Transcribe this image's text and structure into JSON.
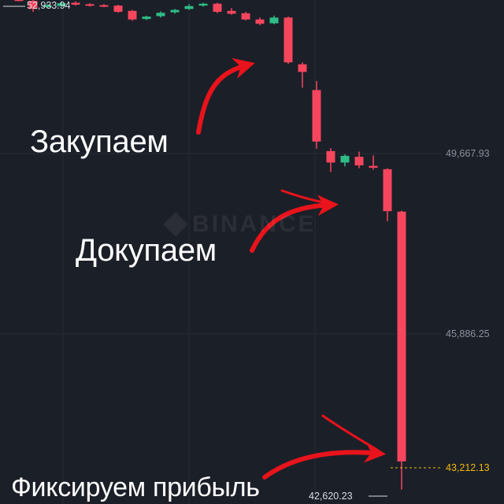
{
  "chart_data": {
    "type": "candlestick",
    "exchange_watermark": "BINANCE",
    "y_axis_labels": [
      "49,667.93",
      "45,886.25"
    ],
    "y_axis_values": [
      49667.93,
      45886.25
    ],
    "current_price": {
      "label": "43,212.13",
      "value": 43212.13
    },
    "high_marker": {
      "label": "52,933.94",
      "value": 52933.94
    },
    "low_marker": {
      "label": "42,620.23",
      "value": 42620.23
    },
    "candles": [
      {
        "o": 52900,
        "h": 52934,
        "c": 52880,
        "l": 52860
      },
      {
        "o": 52870,
        "h": 52900,
        "c": 52700,
        "l": 52640
      },
      {
        "o": 52740,
        "h": 52800,
        "c": 52780,
        "l": 52720
      },
      {
        "o": 52760,
        "h": 52860,
        "c": 52820,
        "l": 52750
      },
      {
        "o": 52830,
        "h": 52860,
        "c": 52790,
        "l": 52770
      },
      {
        "o": 52800,
        "h": 52820,
        "c": 52770,
        "l": 52750
      },
      {
        "o": 52780,
        "h": 52800,
        "c": 52760,
        "l": 52740
      },
      {
        "o": 52770,
        "h": 52790,
        "c": 52640,
        "l": 52620
      },
      {
        "o": 52660,
        "h": 52680,
        "c": 52480,
        "l": 52450
      },
      {
        "o": 52490,
        "h": 52560,
        "c": 52540,
        "l": 52470
      },
      {
        "o": 52550,
        "h": 52650,
        "c": 52620,
        "l": 52520
      },
      {
        "o": 52630,
        "h": 52700,
        "c": 52680,
        "l": 52600
      },
      {
        "o": 52700,
        "h": 52800,
        "c": 52760,
        "l": 52680
      },
      {
        "o": 52770,
        "h": 52830,
        "c": 52810,
        "l": 52750
      },
      {
        "o": 52810,
        "h": 52830,
        "c": 52640,
        "l": 52610
      },
      {
        "o": 52660,
        "h": 52720,
        "c": 52600,
        "l": 52580
      },
      {
        "o": 52610,
        "h": 52640,
        "c": 52480,
        "l": 52460
      },
      {
        "o": 52480,
        "h": 52520,
        "c": 52390,
        "l": 52360
      },
      {
        "o": 52400,
        "h": 52560,
        "c": 52520,
        "l": 52380
      },
      {
        "o": 52520,
        "h": 52540,
        "c": 51580,
        "l": 51550
      },
      {
        "o": 51540,
        "h": 51580,
        "c": 51380,
        "l": 51050
      },
      {
        "o": 51000,
        "h": 51190,
        "c": 49920,
        "l": 49770
      },
      {
        "o": 49720,
        "h": 49780,
        "c": 49480,
        "l": 49280
      },
      {
        "o": 49480,
        "h": 49650,
        "c": 49620,
        "l": 49400
      },
      {
        "o": 49600,
        "h": 49710,
        "c": 49420,
        "l": 49360
      },
      {
        "o": 49410,
        "h": 49630,
        "c": 49370,
        "l": 49330
      },
      {
        "o": 49340,
        "h": 49360,
        "c": 48460,
        "l": 48250
      },
      {
        "o": 48450,
        "h": 48470,
        "c": 43212,
        "l": 42620
      }
    ],
    "colors": {
      "up": "#2ebd85",
      "down": "#f6465d",
      "background": "#1b1f28",
      "grid": "#262b35",
      "axis_text": "#8a909c",
      "price_tag": "#f0b90b",
      "arrow": "#e8131b"
    }
  },
  "annotations": {
    "buy": "Закупаем",
    "add": "Докупаем",
    "profit": "Фиксируем прибыль"
  }
}
